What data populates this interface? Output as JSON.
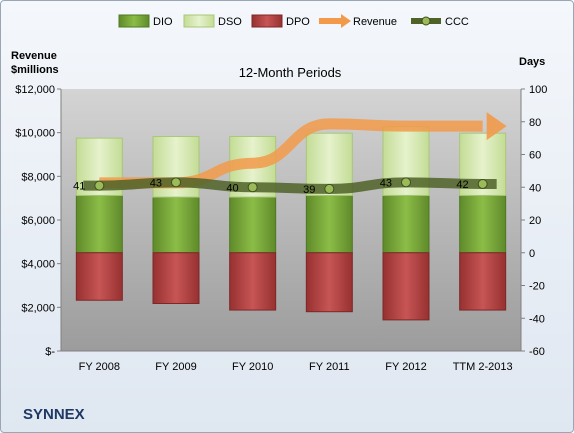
{
  "chart_data": {
    "type": "bar",
    "title": "12-Month Periods",
    "left_axis_label_line1": "Revenue",
    "left_axis_label_line2": "$millions",
    "right_axis_label": "Days",
    "company": "SYNNEX",
    "categories": [
      "FY 2008",
      "FY 2009",
      "FY 2010",
      "FY 2011",
      "FY 2012",
      "TTM 2-2013"
    ],
    "left_ylim": [
      0,
      12000
    ],
    "left_ticks": [
      0,
      2000,
      4000,
      6000,
      8000,
      10000,
      12000
    ],
    "left_tick_labels": [
      "$-",
      "$2,000",
      "$4,000",
      "$6,000",
      "$8,000",
      "$10,000",
      "$12,000"
    ],
    "right_ylim": [
      -60,
      100
    ],
    "right_ticks": [
      -60,
      -40,
      -20,
      0,
      20,
      40,
      60,
      80,
      100
    ],
    "right_tick_labels": [
      "-60",
      "-40",
      "-20",
      "0",
      "20",
      "40",
      "60",
      "80",
      "100"
    ],
    "legend_position": "top",
    "grid": false,
    "series": [
      {
        "name": "DIO",
        "axis": "right",
        "kind": "stacked-bar",
        "color": "#77a637",
        "values": [
          35,
          34,
          34,
          35,
          35,
          35
        ]
      },
      {
        "name": "DSO",
        "axis": "right",
        "kind": "stacked-bar",
        "color": "#d7e8b5",
        "values": [
          35,
          37,
          37,
          38,
          42,
          38
        ]
      },
      {
        "name": "DPO",
        "axis": "right",
        "kind": "negative-bar",
        "color": "#b83c3c",
        "values": [
          -29,
          -31,
          -35,
          -36,
          -41,
          -35
        ]
      },
      {
        "name": "Revenue",
        "axis": "left",
        "kind": "arrow-line",
        "color": "#f29a4a",
        "values": [
          7700,
          7700,
          8600,
          10400,
          10300,
          10300
        ]
      },
      {
        "name": "CCC",
        "axis": "right",
        "kind": "line",
        "color": "#4f6228",
        "values": [
          41,
          43,
          40,
          39,
          43,
          42
        ],
        "labels": [
          "41",
          "43",
          "40",
          "39",
          "43",
          "42"
        ]
      }
    ]
  }
}
